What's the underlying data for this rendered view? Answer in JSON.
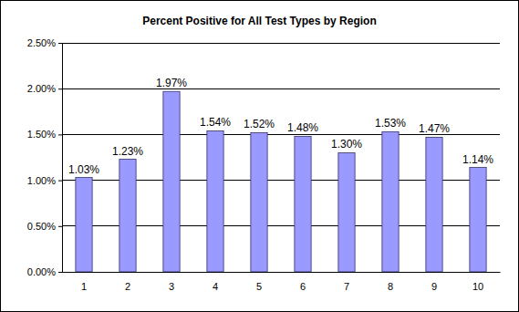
{
  "chart_data": {
    "type": "bar",
    "title": "Percent Positive for All Test Types by Region",
    "categories": [
      "1",
      "2",
      "3",
      "4",
      "5",
      "6",
      "7",
      "8",
      "9",
      "10"
    ],
    "values": [
      1.03,
      1.23,
      1.97,
      1.54,
      1.52,
      1.48,
      1.3,
      1.53,
      1.47,
      1.14
    ],
    "value_labels": [
      "1.03%",
      "1.23%",
      "1.97%",
      "1.54%",
      "1.52%",
      "1.48%",
      "1.30%",
      "1.53%",
      "1.47%",
      "1.14%"
    ],
    "data_labels": true,
    "color": "#9999ff",
    "ylim": [
      0,
      2.5
    ],
    "yticks": [
      {
        "value": 0,
        "label": "0.00%"
      },
      {
        "value": 0.5,
        "label": "0.50%"
      },
      {
        "value": 1.0,
        "label": "1.00%"
      },
      {
        "value": 1.5,
        "label": "1.50%"
      },
      {
        "value": 2.0,
        "label": "2.00%"
      },
      {
        "value": 2.5,
        "label": "2.50%"
      }
    ],
    "grid": true
  }
}
